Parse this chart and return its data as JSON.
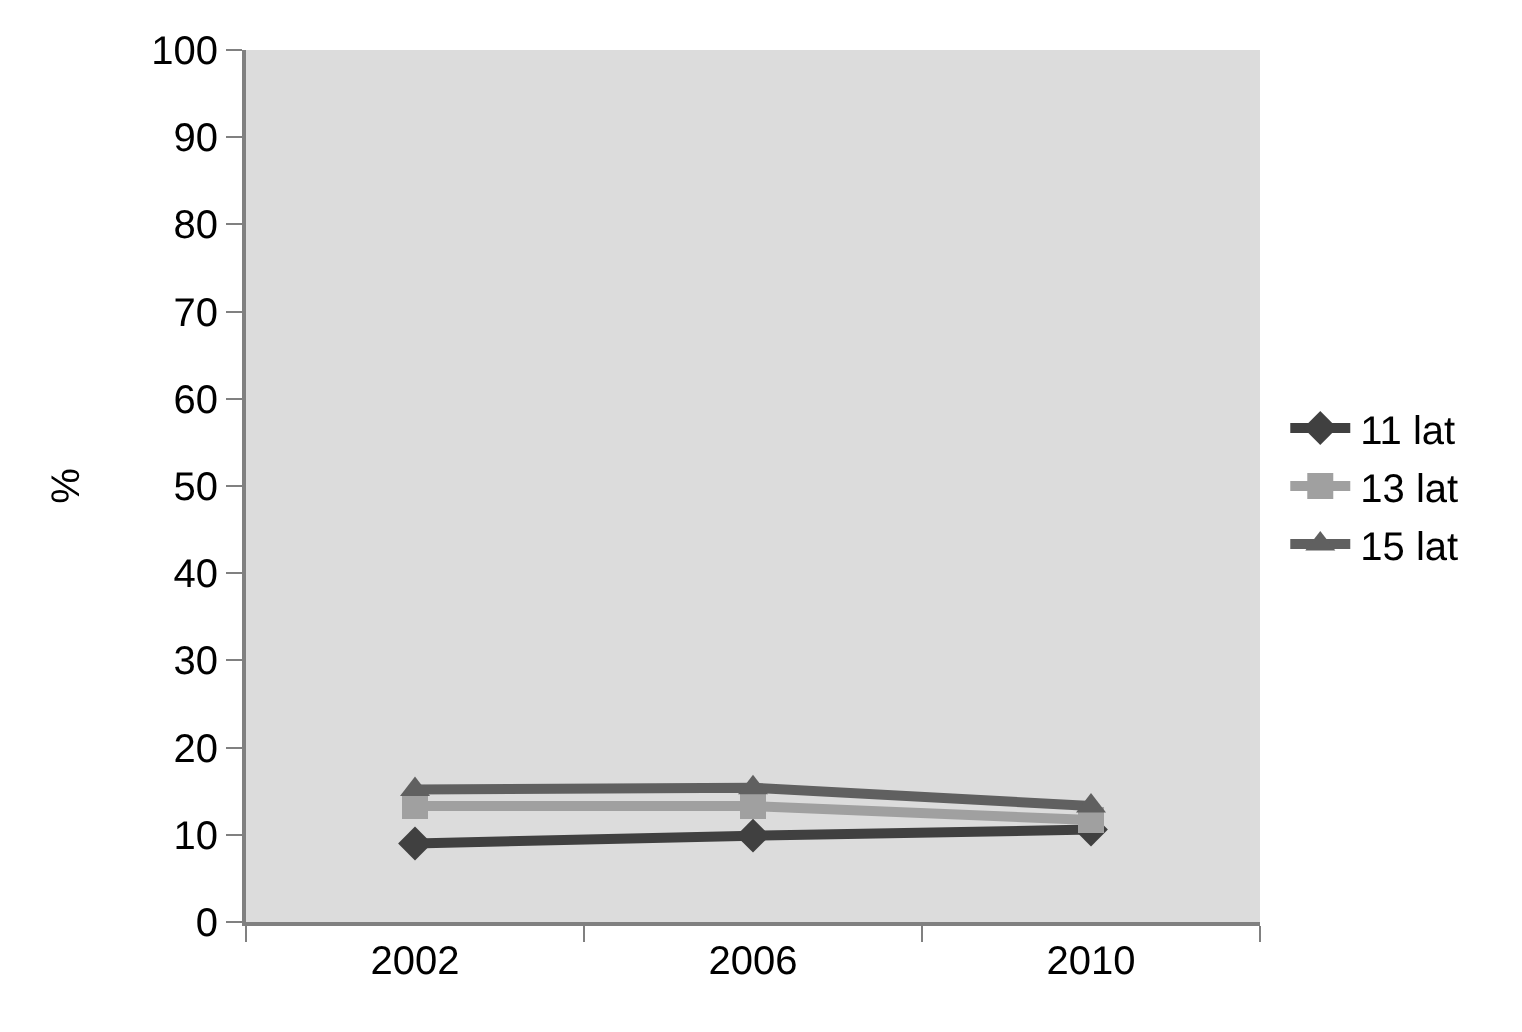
{
  "chart_data": {
    "type": "line",
    "ylabel": "%",
    "categories": [
      "2002",
      "2006",
      "2010"
    ],
    "series": [
      {
        "name": "11 lat",
        "color": "#404040",
        "values": [
          9.0,
          9.9,
          10.6
        ],
        "marker": "diamond"
      },
      {
        "name": "13 lat",
        "color": "#a0a0a0",
        "values": [
          13.3,
          13.3,
          11.7
        ],
        "marker": "square"
      },
      {
        "name": "15 lat",
        "color": "#606060",
        "values": [
          15.2,
          15.4,
          13.3
        ],
        "marker": "triangle"
      }
    ],
    "ylim": [
      0,
      100
    ],
    "yticks": [
      0,
      10,
      20,
      30,
      40,
      50,
      60,
      70,
      80,
      90,
      100
    ],
    "grid": false,
    "legend": "right",
    "line_style": "solid"
  }
}
